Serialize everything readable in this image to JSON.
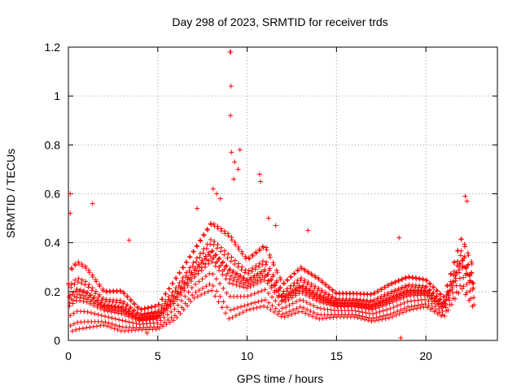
{
  "chart_data": {
    "type": "scatter",
    "title": "Day 298 of 2023, SRMTID for receiver trds",
    "xlabel": "GPS time / hours",
    "ylabel": "SRMTID / TECUs",
    "xlim": [
      0,
      24
    ],
    "ylim": [
      0,
      1.2
    ],
    "x_ticks": [
      0,
      5,
      10,
      15,
      20
    ],
    "x_tick_labels": [
      "0",
      "5",
      "10",
      "15",
      "20"
    ],
    "y_ticks": [
      0,
      0.2,
      0.4,
      0.6,
      0.8,
      1.0,
      1.2
    ],
    "y_tick_labels": [
      "0",
      "0.2",
      "0.4",
      "0.6",
      "0.8",
      "1",
      "1.2"
    ],
    "grid": true,
    "marker": "+",
    "series": [
      {
        "name": "SRMTID",
        "color": "#ff0000",
        "x_range_hours": [
          0,
          22.7
        ],
        "profile": [
          {
            "t": 0.0,
            "level": 0.17,
            "spread": 0.18
          },
          {
            "t": 0.5,
            "level": 0.2,
            "spread": 0.2
          },
          {
            "t": 1.0,
            "level": 0.19,
            "spread": 0.18
          },
          {
            "t": 2.0,
            "level": 0.14,
            "spread": 0.1
          },
          {
            "t": 3.0,
            "level": 0.13,
            "spread": 0.12
          },
          {
            "t": 4.0,
            "level": 0.09,
            "spread": 0.06
          },
          {
            "t": 5.0,
            "level": 0.1,
            "spread": 0.07
          },
          {
            "t": 6.0,
            "level": 0.18,
            "spread": 0.12
          },
          {
            "t": 7.0,
            "level": 0.28,
            "spread": 0.14
          },
          {
            "t": 8.0,
            "level": 0.36,
            "spread": 0.2
          },
          {
            "t": 9.0,
            "level": 0.28,
            "spread": 0.25
          },
          {
            "t": 10.0,
            "level": 0.24,
            "spread": 0.15
          },
          {
            "t": 11.0,
            "level": 0.28,
            "spread": 0.18
          },
          {
            "t": 12.0,
            "level": 0.17,
            "spread": 0.1
          },
          {
            "t": 13.0,
            "level": 0.22,
            "spread": 0.13
          },
          {
            "t": 14.0,
            "level": 0.18,
            "spread": 0.12
          },
          {
            "t": 15.0,
            "level": 0.15,
            "spread": 0.07
          },
          {
            "t": 16.0,
            "level": 0.15,
            "spread": 0.07
          },
          {
            "t": 17.0,
            "level": 0.14,
            "spread": 0.08
          },
          {
            "t": 18.0,
            "level": 0.17,
            "spread": 0.1
          },
          {
            "t": 19.0,
            "level": 0.2,
            "spread": 0.1
          },
          {
            "t": 20.0,
            "level": 0.2,
            "spread": 0.08
          },
          {
            "t": 21.0,
            "level": 0.14,
            "spread": 0.06
          },
          {
            "t": 22.0,
            "level": 0.33,
            "spread": 0.15
          },
          {
            "t": 22.7,
            "level": 0.22,
            "spread": 0.12
          }
        ],
        "highlight_points": [
          {
            "x": 9.05,
            "y": 1.18
          },
          {
            "x": 9.08,
            "y": 1.18
          },
          {
            "x": 9.1,
            "y": 1.04
          },
          {
            "x": 9.07,
            "y": 0.92
          },
          {
            "x": 9.12,
            "y": 0.77
          },
          {
            "x": 9.6,
            "y": 0.78
          },
          {
            "x": 9.3,
            "y": 0.73
          },
          {
            "x": 9.5,
            "y": 0.7
          },
          {
            "x": 9.25,
            "y": 0.66
          },
          {
            "x": 10.7,
            "y": 0.68
          },
          {
            "x": 10.75,
            "y": 0.65
          },
          {
            "x": 0.1,
            "y": 0.6
          },
          {
            "x": 8.1,
            "y": 0.62
          },
          {
            "x": 8.3,
            "y": 0.6
          },
          {
            "x": 8.5,
            "y": 0.58
          },
          {
            "x": 22.2,
            "y": 0.59
          },
          {
            "x": 22.3,
            "y": 0.57
          },
          {
            "x": 1.35,
            "y": 0.56
          },
          {
            "x": 0.1,
            "y": 0.52
          },
          {
            "x": 7.2,
            "y": 0.54
          },
          {
            "x": 11.2,
            "y": 0.5
          },
          {
            "x": 11.6,
            "y": 0.47
          },
          {
            "x": 13.4,
            "y": 0.45
          },
          {
            "x": 3.4,
            "y": 0.41
          },
          {
            "x": 18.5,
            "y": 0.42
          },
          {
            "x": 18.6,
            "y": 0.01
          },
          {
            "x": 4.4,
            "y": 0.03
          }
        ]
      }
    ]
  }
}
